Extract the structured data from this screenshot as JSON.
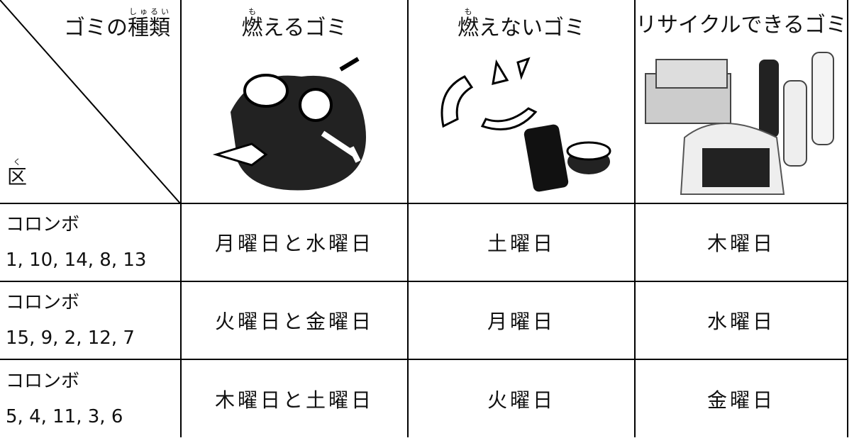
{
  "header": {
    "corner": {
      "prefix": "ゴミの",
      "base": "種類",
      "ruby": "しゅるい",
      "area": "区",
      "area_ruby": "く"
    },
    "columns": [
      {
        "base": "燃",
        "ruby": "も",
        "rest": "えるゴミ"
      },
      {
        "base": "燃",
        "ruby": "も",
        "rest": "えないゴミ"
      },
      {
        "base": "",
        "ruby": "",
        "rest": "リサイクルできるゴミ"
      }
    ]
  },
  "rows": [
    {
      "area": "コロンボ",
      "numbers": "1, 10, 14, 8, 13",
      "days": [
        "月曜日と水曜日",
        "土曜日",
        "木曜日"
      ]
    },
    {
      "area": "コロンボ",
      "numbers": "15, 9, 2, 12, 7",
      "days": [
        "火曜日と金曜日",
        "月曜日",
        "水曜日"
      ]
    },
    {
      "area": "コロンボ",
      "numbers": "5, 4, 11, 3, 6",
      "days": [
        "木曜日と土曜日",
        "火曜日",
        "金曜日"
      ]
    }
  ]
}
